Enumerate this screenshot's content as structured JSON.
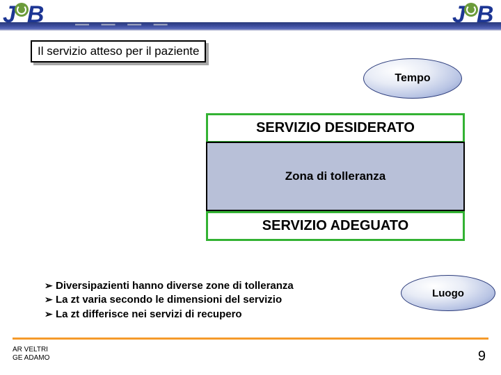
{
  "title": "Il servizio atteso per il paziente",
  "ovals": {
    "tempo": "Tempo",
    "luogo": "Luogo"
  },
  "bands": {
    "top": "SERVIZIO DESIDERATO",
    "bottom": "SERVIZIO ADEGUATO"
  },
  "zone": "Zona di tolleranza",
  "bullets": [
    "Diversipazienti hanno diverse zone di tolleranza",
    "La zt varia secondo le dimensioni del servizio",
    "La zt differisce nei servizi di recupero"
  ],
  "footer": {
    "author1": "AR VELTRI",
    "author2": "GE ADAMO",
    "page": "9"
  },
  "dashes": "— — — —"
}
